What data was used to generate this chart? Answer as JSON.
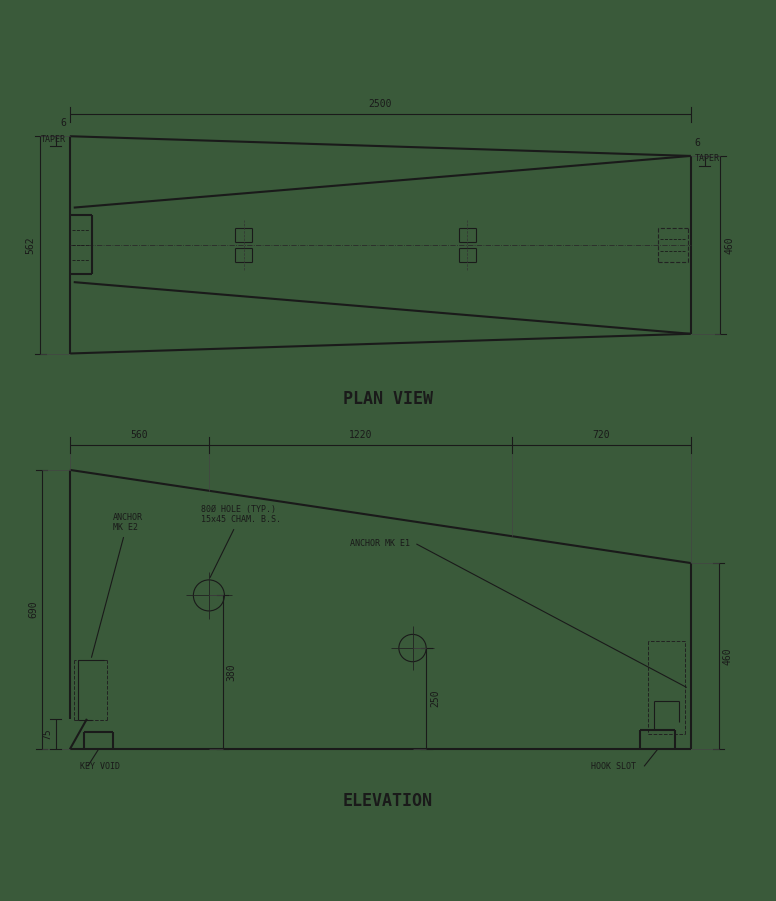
{
  "bg_color": "#3a5a3a",
  "line_color": "#1a1a1a",
  "title_plan": "PLAN VIEW",
  "title_elev": "ELEVATION",
  "plan": {
    "dim_2500": "2500",
    "dim_6_left": "6",
    "dim_taper_left": "TAPER",
    "dim_6_right": "6",
    "dim_taper_right": "TAPER",
    "dim_562": "562",
    "dim_460": "460"
  },
  "elev": {
    "dim_560": "560",
    "dim_1220": "1220",
    "dim_720": "720",
    "dim_690": "690",
    "dim_460": "460",
    "dim_380": "380",
    "dim_250": "250",
    "dim_75": "75",
    "label_anchor_e2": "ANCHOR\nMK E2",
    "label_hole": "80Ø HOLE (TYP.)\n15x45 CHAM. B.S.",
    "label_anchor_e1": "ANCHOR MK E1",
    "label_key_void": "KEY VOID",
    "label_hook_slot": "HOOK SLOT"
  }
}
